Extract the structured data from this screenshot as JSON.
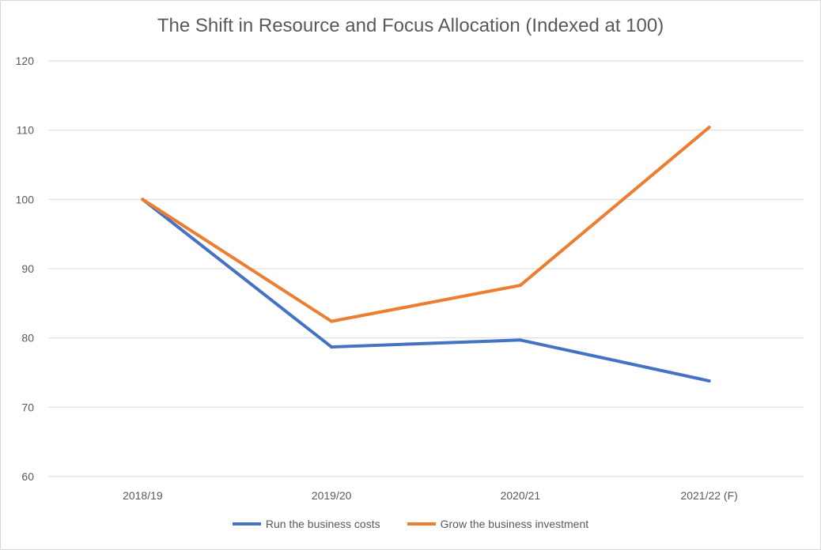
{
  "chart_data": {
    "type": "line",
    "title": "The Shift in Resource and Focus Allocation (Indexed at 100)",
    "categories": [
      "2018/19",
      "2019/20",
      "2020/21",
      "2021/22 (F)"
    ],
    "series": [
      {
        "name": "Run the business costs",
        "color": "#4472c4",
        "values": [
          100,
          78.7,
          79.7,
          73.8
        ]
      },
      {
        "name": "Grow the business investment",
        "color": "#ed7d31",
        "values": [
          100,
          82.4,
          87.6,
          110.4
        ]
      }
    ],
    "ylim": [
      60,
      120
    ],
    "yticks": [
      60,
      70,
      80,
      90,
      100,
      110,
      120
    ],
    "grid": true,
    "legend": "bottom"
  }
}
